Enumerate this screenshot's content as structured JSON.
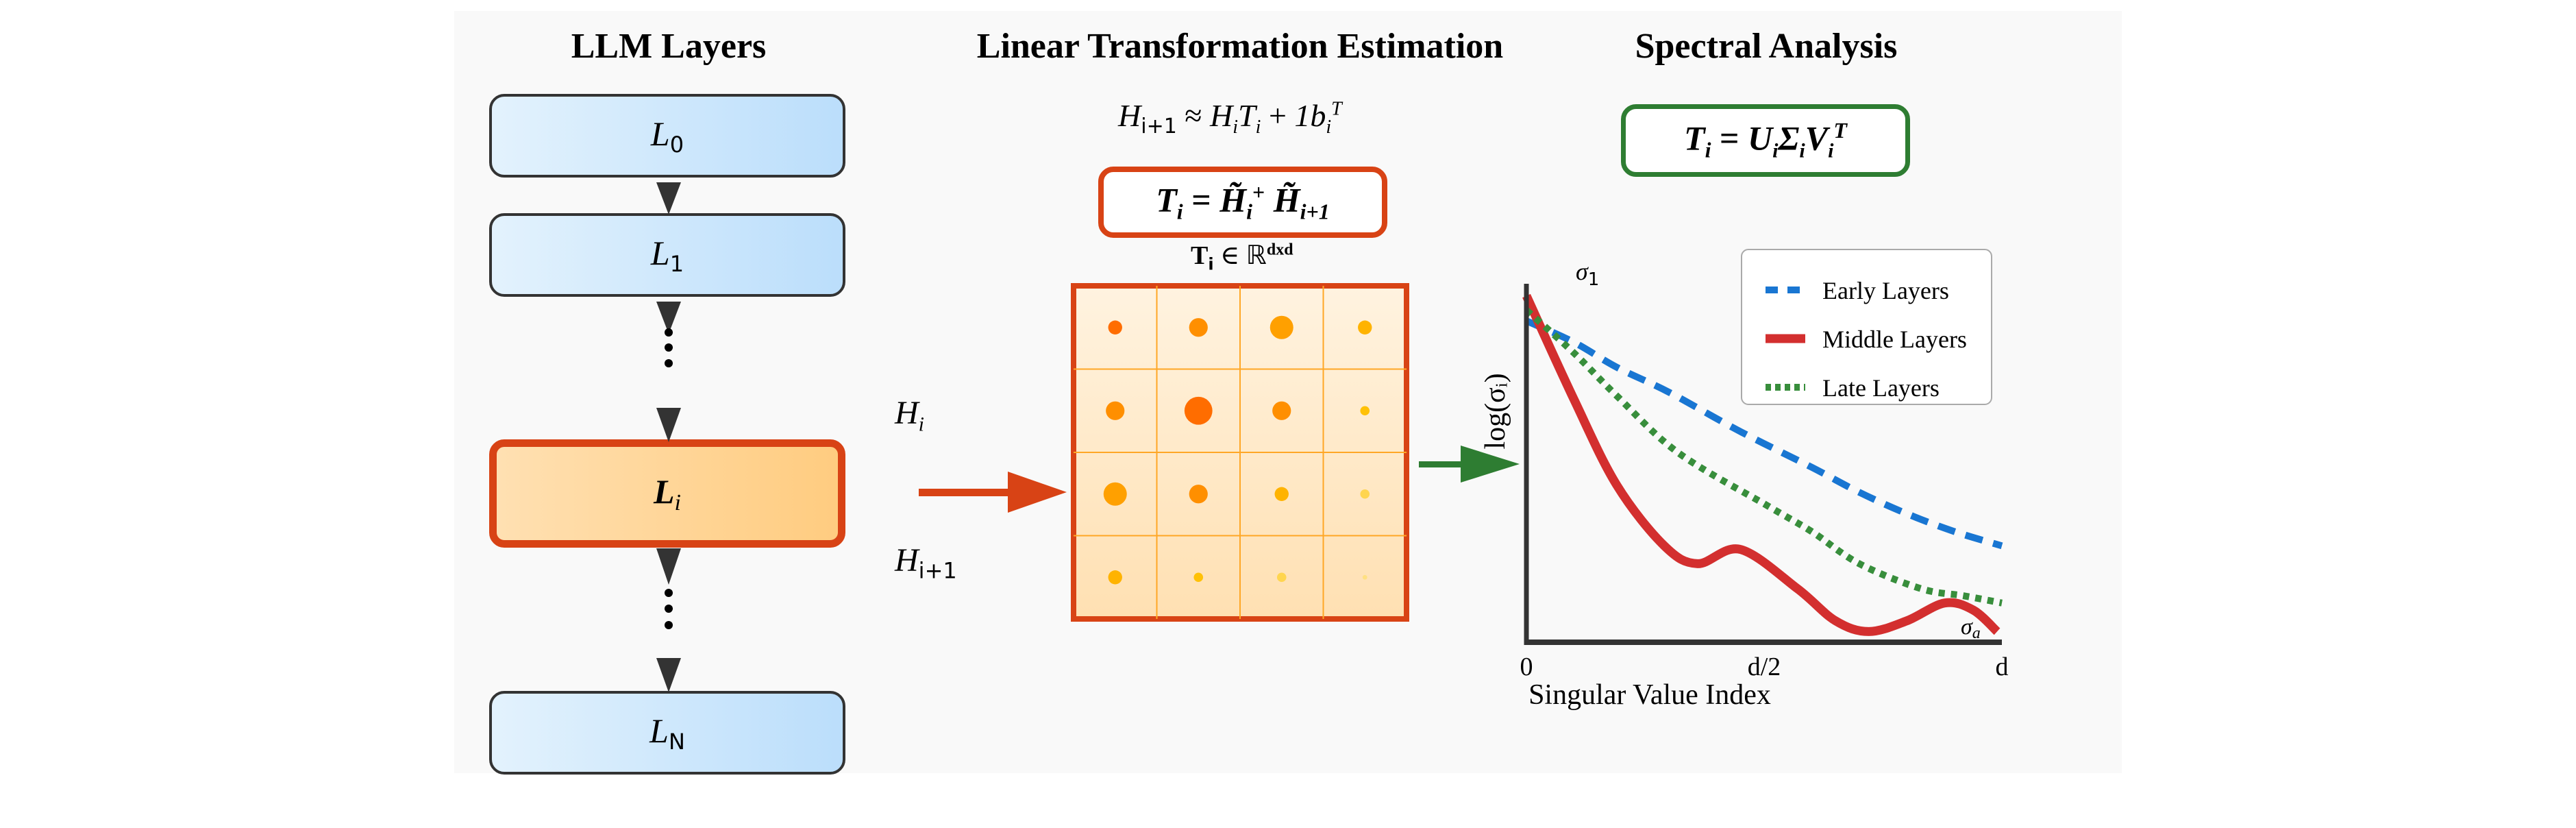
{
  "titles": {
    "layers": "LLM Layers",
    "estimation": "Linear Transformation Estimation",
    "spectral": "Spectral Analysis"
  },
  "layers": [
    {
      "base": "L",
      "sub": "0",
      "active": false
    },
    {
      "base": "L",
      "sub": "1",
      "active": false
    },
    {
      "base": "L",
      "sub": "i",
      "active": true
    },
    {
      "base": "L",
      "sub": "N",
      "active": false
    }
  ],
  "ellipsis": "⋮",
  "hidden_states": {
    "input": {
      "base": "H",
      "sub": "i"
    },
    "output": {
      "base": "H",
      "sub": "i+1"
    }
  },
  "equations": {
    "approx": {
      "lhs_base": "H",
      "lhs_sub": "i+1",
      "op": "≈",
      "rhs": "H",
      "rhs_sub": "i",
      "t": "T",
      "t_sub": "i",
      "plus": "+",
      "one_b": "1b",
      "b_sub": "i",
      "sup": "T"
    },
    "estimate": {
      "lhs": "T",
      "lhs_sub": "i",
      "eq": "=",
      "h": "H̃",
      "h_sub": "i",
      "h_sup": "+",
      "h2": "H̃",
      "h2_sub": "i+1"
    },
    "dimension": {
      "t": "T",
      "t_sub": "i",
      "in": "∈",
      "space": "ℝ",
      "sup": "dxd"
    },
    "svd": {
      "lhs": "T",
      "lhs_sub": "i",
      "eq": "=",
      "u": "U",
      "u_sub": "i",
      "sigma": "Σ",
      "sigma_sub": "i",
      "v": "V",
      "v_sub": "i",
      "sup": "T"
    }
  },
  "matrix": {
    "rows": 4,
    "cols": 4,
    "cells": [
      [
        {
          "magnitude": 0.6,
          "color": "#ff6d00"
        },
        {
          "magnitude": 0.8,
          "color": "#ff8f00"
        },
        {
          "magnitude": 1.0,
          "color": "#ffa000"
        },
        {
          "magnitude": 0.6,
          "color": "#ffb300"
        }
      ],
      [
        {
          "magnitude": 0.8,
          "color": "#ff8f00"
        },
        {
          "magnitude": 1.2,
          "color": "#ff6d00"
        },
        {
          "magnitude": 0.8,
          "color": "#ff8f00"
        },
        {
          "magnitude": 0.4,
          "color": "#ffc107"
        }
      ],
      [
        {
          "magnitude": 1.0,
          "color": "#ffa000"
        },
        {
          "magnitude": 0.8,
          "color": "#ff8f00"
        },
        {
          "magnitude": 0.6,
          "color": "#ffb300"
        },
        {
          "magnitude": 0.4,
          "color": "#ffd54f"
        }
      ],
      [
        {
          "magnitude": 0.6,
          "color": "#ffb300"
        },
        {
          "magnitude": 0.4,
          "color": "#ffc107"
        },
        {
          "magnitude": 0.4,
          "color": "#ffd54f"
        },
        {
          "magnitude": 0.2,
          "color": "#ffe082"
        }
      ]
    ]
  },
  "colors": {
    "accent_orange": "#d84315",
    "accent_green": "#2e7d32",
    "layer_border": "#333333",
    "grid_line": "#ffa726"
  },
  "chart_data": {
    "type": "line",
    "title": "Spectral Analysis",
    "xlabel": "Singular Value Index",
    "ylabel": "log(σᵢ)",
    "xticks": [
      {
        "value": 0,
        "label": "0"
      },
      {
        "value": 0.5,
        "label": "d/2"
      },
      {
        "value": 1,
        "label": "d"
      }
    ],
    "xlim": [
      0,
      1
    ],
    "ylim": [
      0,
      1
    ],
    "grid": false,
    "legend_position": "top-right",
    "annotations": [
      {
        "text": "σ",
        "sub": "1",
        "at": "top"
      },
      {
        "text": "σ",
        "sub": "a",
        "at": "bottom-right"
      }
    ],
    "series": [
      {
        "name": "Early Layers",
        "color": "#1976d2",
        "style": "dashed",
        "x": [
          0,
          0.1,
          0.19,
          0.3,
          0.45,
          0.6,
          0.7,
          0.8,
          0.9,
          1.0
        ],
        "y": [
          0.9,
          0.84,
          0.77,
          0.7,
          0.59,
          0.49,
          0.42,
          0.36,
          0.31,
          0.27
        ]
      },
      {
        "name": "Middle Layers",
        "color": "#d32f2f",
        "style": "solid",
        "x": [
          0,
          0.1,
          0.19,
          0.29,
          0.36,
          0.45,
          0.57,
          0.65,
          0.72,
          0.8,
          0.88,
          0.94,
          0.99
        ],
        "y": [
          0.97,
          0.68,
          0.44,
          0.27,
          0.22,
          0.26,
          0.15,
          0.06,
          0.03,
          0.06,
          0.11,
          0.09,
          0.03
        ]
      },
      {
        "name": "Late Layers",
        "color": "#388e3c",
        "style": "dotted",
        "x": [
          0,
          0.1,
          0.19,
          0.32,
          0.51,
          0.6,
          0.7,
          0.83,
          0.92,
          1.0
        ],
        "y": [
          0.93,
          0.81,
          0.69,
          0.53,
          0.38,
          0.31,
          0.22,
          0.15,
          0.13,
          0.11
        ]
      }
    ]
  }
}
